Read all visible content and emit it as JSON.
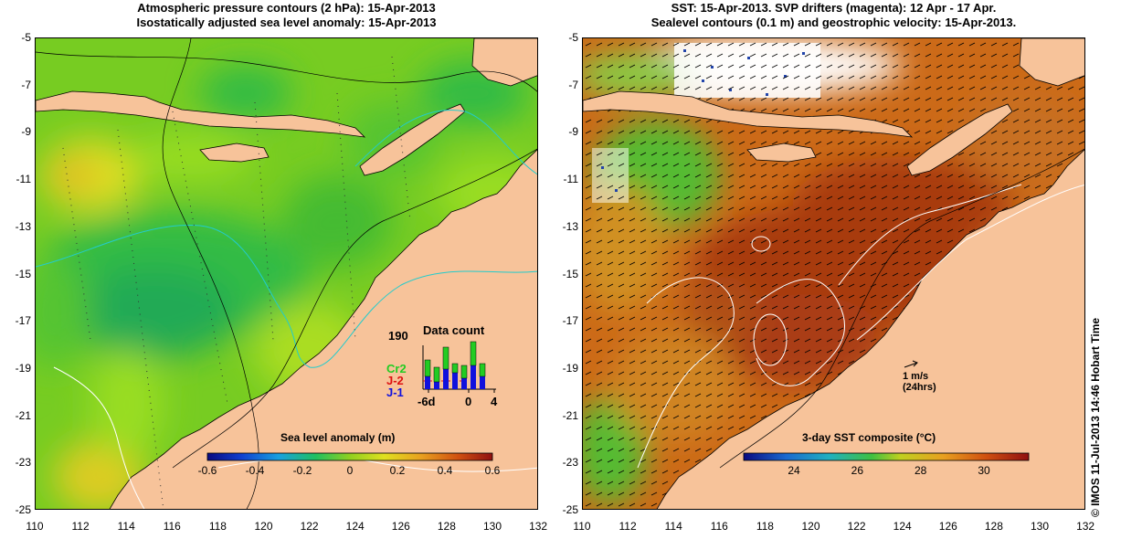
{
  "left": {
    "title_line1": "Atmospheric pressure contours (2 hPa): 15-Apr-2013",
    "title_line2": "Isostatically adjusted sea level anomaly: 15-Apr-2013",
    "colorbar": {
      "label": "Sea level anomaly (m)",
      "ticks": [
        "-0.6",
        "-0.4",
        "-0.2",
        "0",
        "0.2",
        "0.4",
        "0.6"
      ]
    },
    "data_count": {
      "title": "Data count",
      "max_label": "190",
      "series": [
        "Cr2",
        "J-2",
        "J-1"
      ],
      "series_colors": [
        "#22cc22",
        "#dd1111",
        "#1111dd"
      ],
      "x_labels": [
        "-6d",
        "0",
        "4"
      ]
    }
  },
  "right": {
    "title_line1": "SST: 15-Apr-2013. SVP drifters (magenta): 12 Apr - 17 Apr.",
    "title_line2": "Sealevel contours (0.1 m) and geostrophic velocity: 15-Apr-2013.",
    "colorbar": {
      "label": "3-day SST composite (°C)",
      "ticks": [
        "24",
        "26",
        "28",
        "30"
      ]
    },
    "vector_scale": {
      "line1": "1 m/s",
      "line2": "(24hrs)"
    }
  },
  "axes": {
    "y_ticks": [
      "-5",
      "-7",
      "-9",
      "-11",
      "-13",
      "-15",
      "-17",
      "-19",
      "-21",
      "-23",
      "-25"
    ],
    "x_ticks": [
      "110",
      "112",
      "114",
      "116",
      "118",
      "120",
      "122",
      "124",
      "126",
      "128",
      "130",
      "132"
    ]
  },
  "credit": "© IMOS 11-Jul-2013 14:46 Hobart Time",
  "colors": {
    "land": "#f7c39a",
    "sla_low": "#22bb33",
    "sla_mid": "#99dd22",
    "sst_warm": "#d2691e",
    "sst_hot": "#b22a0a"
  }
}
